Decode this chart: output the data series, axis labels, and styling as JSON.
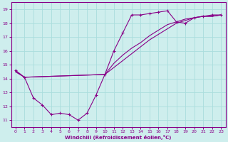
{
  "xlabel": "Windchill (Refroidissement éolien,°C)",
  "xlim": [
    -0.5,
    23.5
  ],
  "ylim": [
    10.5,
    19.5
  ],
  "xticks": [
    0,
    1,
    2,
    3,
    4,
    5,
    6,
    7,
    8,
    9,
    10,
    11,
    12,
    13,
    14,
    15,
    16,
    17,
    18,
    19,
    20,
    21,
    22,
    23
  ],
  "yticks": [
    11,
    12,
    13,
    14,
    15,
    16,
    17,
    18,
    19
  ],
  "background_color": "#ceeeed",
  "grid_color": "#aadddd",
  "line_color": "#880088",
  "line1_x": [
    0,
    1,
    2,
    3,
    4,
    5,
    6,
    7,
    8,
    9,
    10,
    11,
    12,
    13,
    14,
    15,
    16,
    17,
    18,
    19,
    20,
    21,
    22,
    23
  ],
  "line1_y": [
    14.6,
    14.1,
    12.6,
    12.1,
    11.4,
    11.5,
    11.4,
    11.0,
    11.5,
    12.8,
    14.3,
    16.0,
    17.3,
    18.6,
    18.6,
    18.7,
    18.8,
    18.9,
    18.1,
    18.0,
    18.4,
    18.5,
    18.6,
    18.6
  ],
  "line2_x": [
    0,
    1,
    10,
    11,
    12,
    13,
    14,
    15,
    16,
    17,
    18,
    19,
    20,
    21,
    22,
    23
  ],
  "line2_y": [
    14.5,
    14.1,
    14.3,
    15.1,
    15.7,
    16.2,
    16.6,
    17.1,
    17.5,
    17.9,
    18.1,
    18.3,
    18.4,
    18.5,
    18.5,
    18.6
  ],
  "line3_x": [
    0,
    1,
    10,
    11,
    12,
    13,
    14,
    15,
    16,
    17,
    18,
    19,
    20,
    21,
    22,
    23
  ],
  "line3_y": [
    14.5,
    14.1,
    14.3,
    14.8,
    15.3,
    15.8,
    16.3,
    16.8,
    17.2,
    17.6,
    18.0,
    18.2,
    18.4,
    18.5,
    18.5,
    18.6
  ]
}
